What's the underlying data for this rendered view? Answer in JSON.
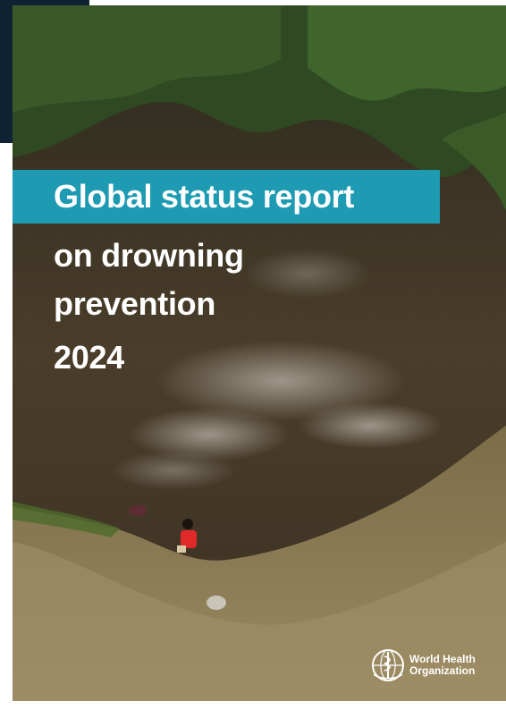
{
  "cover": {
    "title_highlight": "Global status report",
    "subtitle_line1": "on drowning",
    "subtitle_line2": "prevention",
    "year": "2024"
  },
  "logo": {
    "icon": "who-emblem-icon",
    "line1": "World Health",
    "line2": "Organization"
  },
  "colors": {
    "title_bar": "#1e9bb3",
    "text": "#ffffff",
    "water": "#3d3426",
    "bank": "#8a7a55",
    "foliage": "#2f4a22",
    "child_shirt": "#e02a2a"
  }
}
